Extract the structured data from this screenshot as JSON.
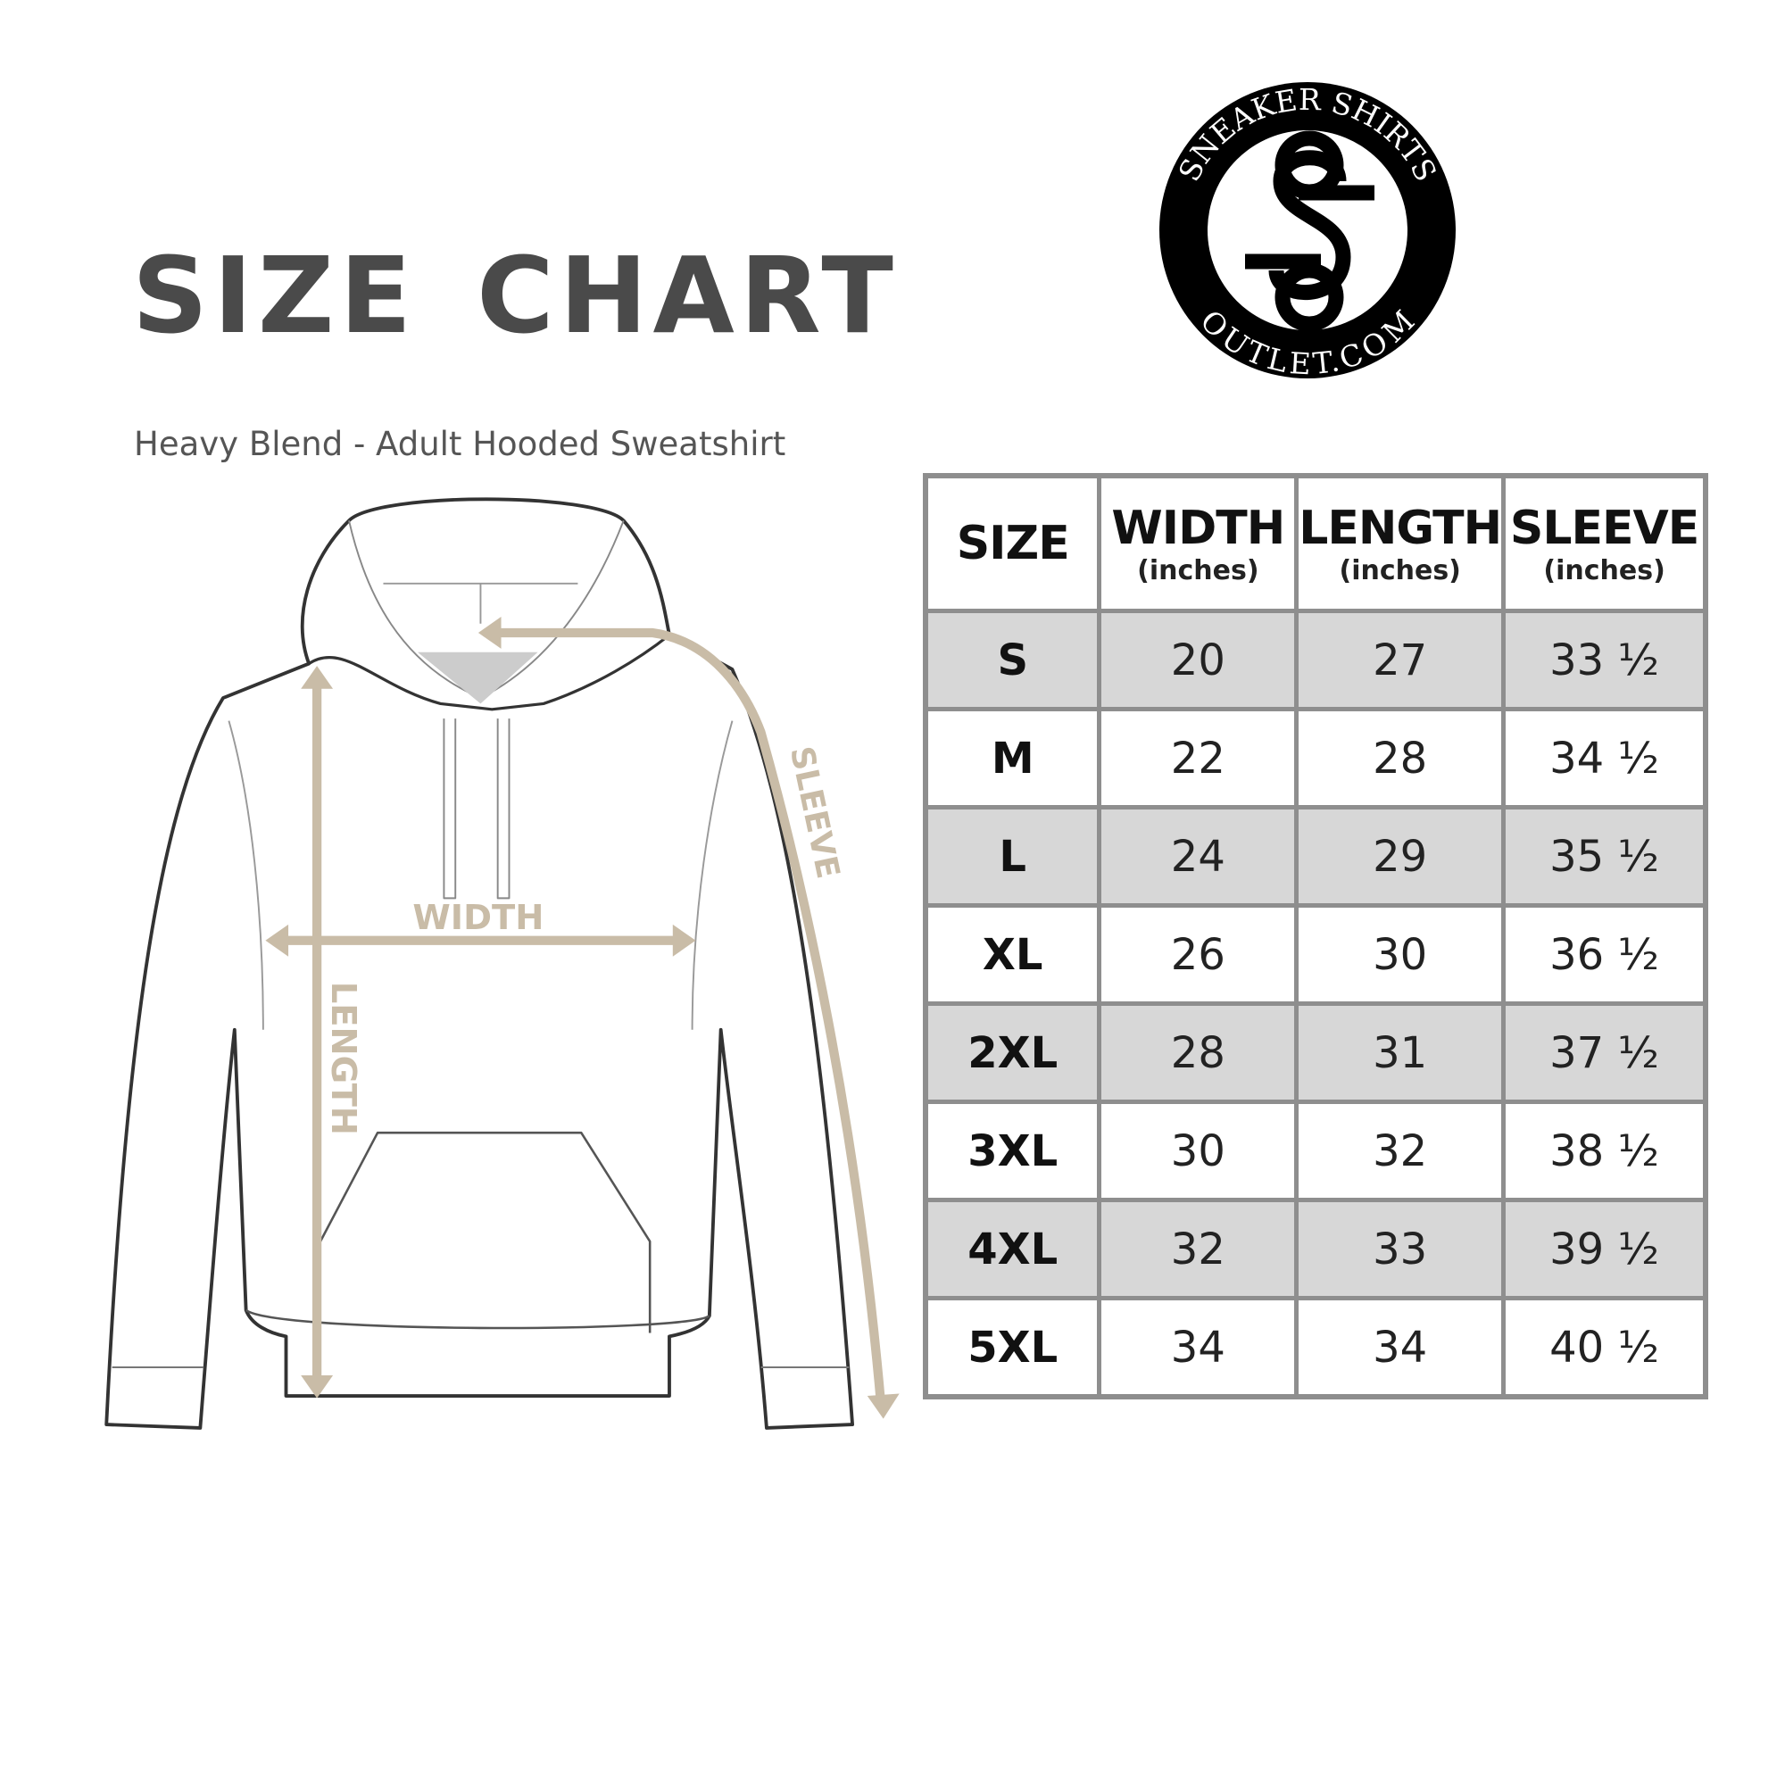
{
  "title": "SIZE CHART",
  "subtitle": "Heavy Blend - Adult Hooded Sweatshirt",
  "logo": {
    "text_top": "SNEAKER SHIRTS",
    "text_bottom": "OUTLET.COM",
    "monogram": "SS"
  },
  "diagram": {
    "labels": {
      "width": "WIDTH",
      "length": "LENGTH",
      "sleeve": "SLEEVE"
    },
    "arrow_color": "#c9bca7",
    "outline_color": "#333333"
  },
  "table": {
    "headers": [
      {
        "main": "SIZE",
        "sub": ""
      },
      {
        "main": "WIDTH",
        "sub": "(inches)"
      },
      {
        "main": "LENGTH",
        "sub": "(inches)"
      },
      {
        "main": "SLEEVE",
        "sub": "(inches)"
      }
    ],
    "rows": [
      [
        "S",
        "20",
        "27",
        "33 ½"
      ],
      [
        "M",
        "22",
        "28",
        "34 ½"
      ],
      [
        "L",
        "24",
        "29",
        "35 ½"
      ],
      [
        "XL",
        "26",
        "30",
        "36 ½"
      ],
      [
        "2XL",
        "28",
        "31",
        "37 ½"
      ],
      [
        "3XL",
        "30",
        "32",
        "38 ½"
      ],
      [
        "4XL",
        "32",
        "33",
        "39 ½"
      ],
      [
        "5XL",
        "34",
        "34",
        "40 ½"
      ]
    ]
  }
}
